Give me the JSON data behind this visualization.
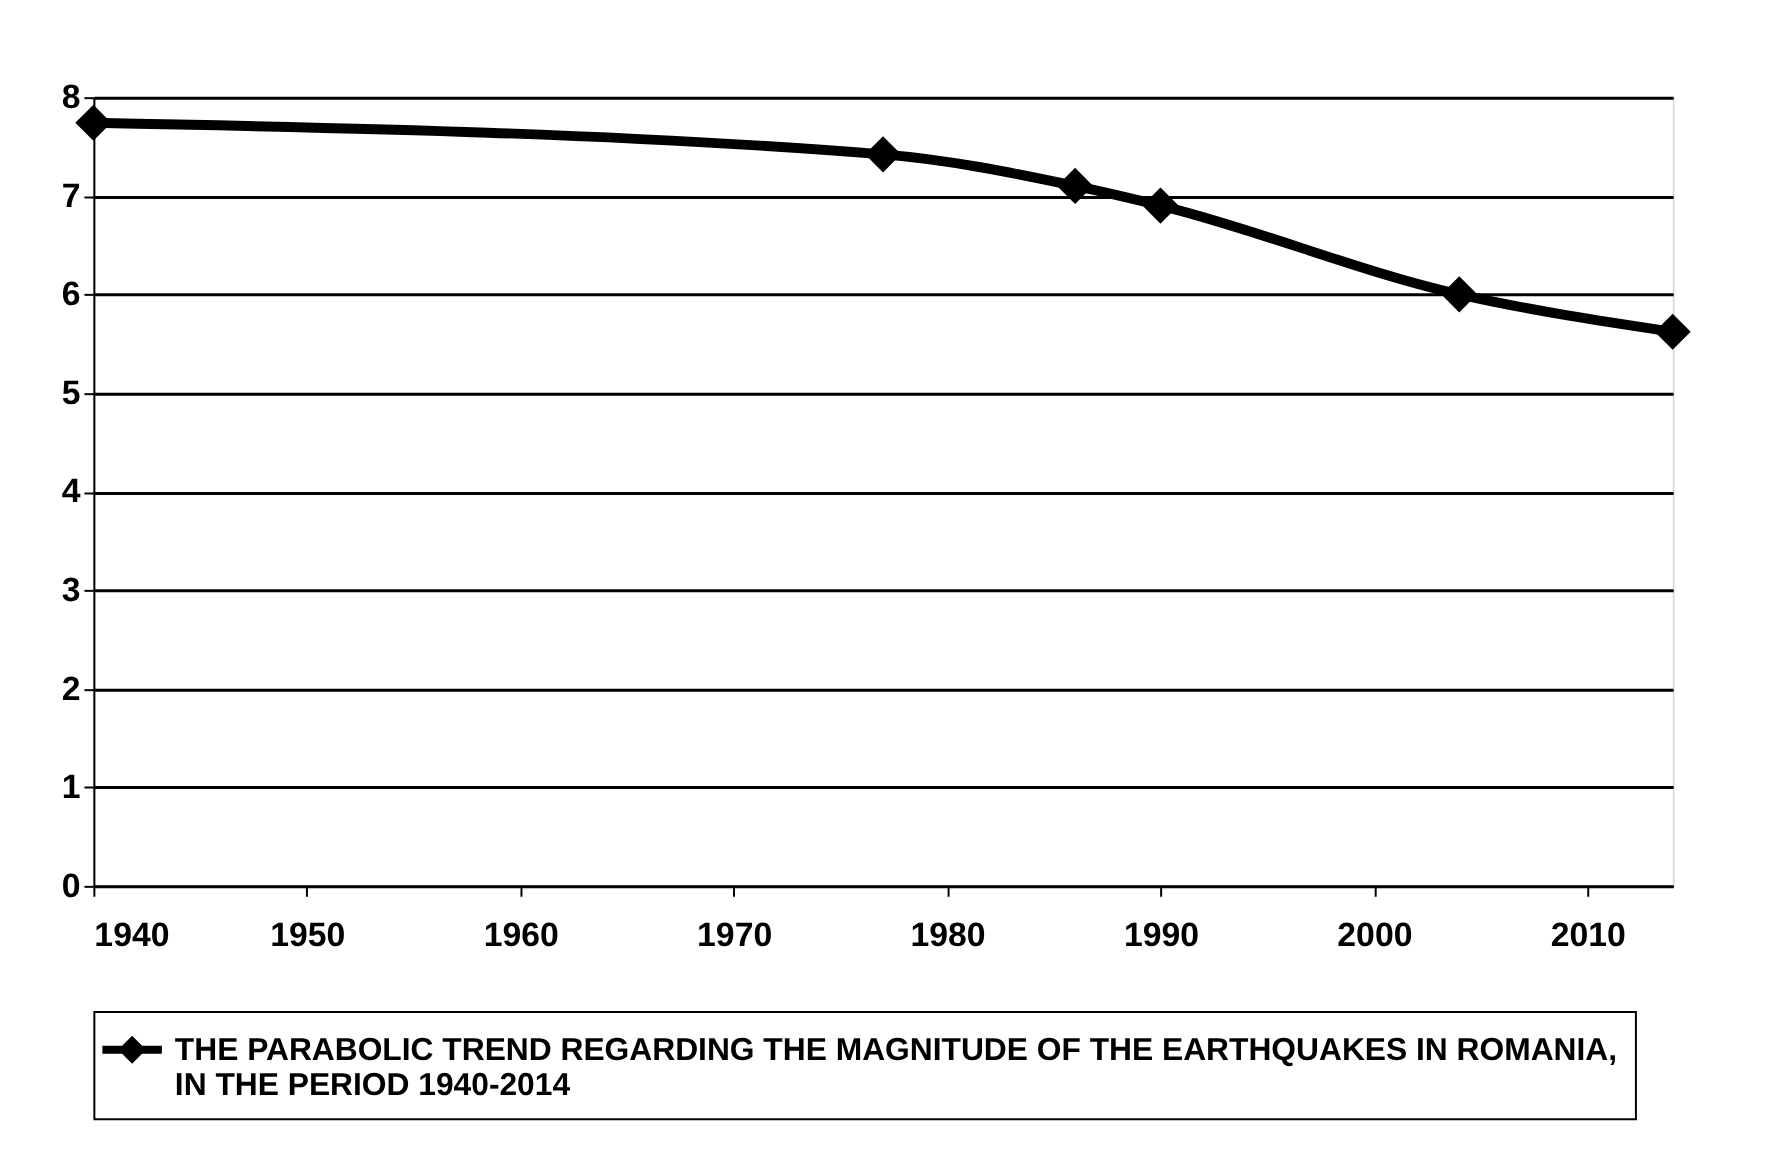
{
  "chart_data": {
    "type": "line",
    "x": [
      1940,
      1977,
      1986,
      1990,
      2004,
      2014
    ],
    "series": [
      {
        "name": "THE PARABOLIC TREND REGARDING THE MAGNITUDE OF THE EARTHQUAKES IN ROMANIA, IN THE PERIOD 1940-2014",
        "color": "#000000",
        "values": [
          7.74,
          7.42,
          7.1,
          6.9,
          6.0,
          5.62
        ]
      }
    ],
    "xlim": [
      1940,
      2014
    ],
    "xticks": [
      1940,
      1950,
      1960,
      1970,
      1980,
      1990,
      2000,
      2010
    ],
    "ylim": [
      0,
      8
    ],
    "yticks": [
      0,
      1,
      2,
      3,
      4,
      5,
      6,
      7,
      8
    ],
    "grid": "y",
    "legend": "bottom",
    "marker": "diamond",
    "line_style": "solid"
  }
}
